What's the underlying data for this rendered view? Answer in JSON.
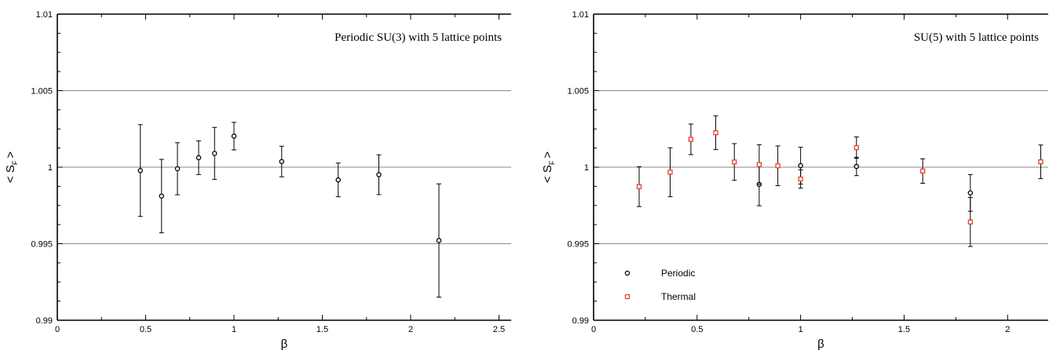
{
  "chart_data": [
    {
      "type": "scatter",
      "title": "Periodic SU(3) with 5 lattice points",
      "xlabel": "β",
      "ylabel": "< S",
      "ylabel_sub": "F",
      "ylabel_suffix": ">",
      "xlim": [
        0,
        2.6
      ],
      "ylim": [
        0.99,
        1.01
      ],
      "xticks": [
        0,
        0.5,
        1,
        1.5,
        2,
        2.5
      ],
      "xtick_labels": [
        "0",
        "0.5",
        "1",
        "1.5",
        "2",
        "2.5"
      ],
      "yticks": [
        0.99,
        0.995,
        1,
        1.005,
        1.01
      ],
      "ytick_labels": [
        "0.99",
        "0.995",
        "1",
        "1.005",
        "1.01"
      ],
      "grid_y": [
        0.995,
        1,
        1.005
      ],
      "grid": true,
      "series": [
        {
          "marker": "circle",
          "color": "#000000",
          "x": [
            0.47,
            0.59,
            0.68,
            0.8,
            0.89,
            1.0,
            1.27,
            1.59,
            1.82,
            2.16
          ],
          "y": [
            0.99978,
            0.99811,
            0.9999,
            1.00062,
            1.0009,
            1.00203,
            1.00037,
            0.99917,
            0.99951,
            0.99521
          ],
          "err": [
            0.003,
            0.0024,
            0.0017,
            0.0011,
            0.0017,
            0.0009,
            0.001,
            0.0011,
            0.0013,
            0.0037
          ]
        }
      ]
    },
    {
      "type": "scatter",
      "title": "SU(5) with 5 lattice points",
      "xlabel": "β",
      "ylabel": "< S",
      "ylabel_sub": "F",
      "ylabel_suffix": ">",
      "xlim": [
        0,
        2.2
      ],
      "ylim": [
        0.99,
        1.01
      ],
      "xticks": [
        0,
        0.5,
        1,
        1.5,
        2
      ],
      "xtick_labels": [
        "0",
        "0.5",
        "1",
        "1.5",
        "2"
      ],
      "yticks": [
        0.99,
        0.995,
        1,
        1.005,
        1.01
      ],
      "ytick_labels": [
        "0.99",
        "0.995",
        "1",
        "1.005",
        "1.01"
      ],
      "grid_y": [
        0.995,
        1,
        1.005
      ],
      "grid": true,
      "legend": "bottom-left",
      "series": [
        {
          "name": "Periodic",
          "marker": "circle",
          "color": "#000000",
          "x": [
            0.8,
            1.0,
            1.27,
            1.82
          ],
          "y": [
            0.99888,
            1.0001,
            1.00005,
            0.99832
          ],
          "err": [
            0.0014,
            0.0012,
            0.0006,
            0.0012
          ]
        },
        {
          "name": "Thermal",
          "marker": "square",
          "color": "#e8412a",
          "x": [
            0.22,
            0.37,
            0.47,
            0.59,
            0.68,
            0.8,
            0.89,
            1.0,
            1.27,
            1.59,
            1.82,
            2.16
          ],
          "y": [
            0.99873,
            0.99967,
            1.00182,
            1.00225,
            1.00034,
            1.00017,
            1.00009,
            0.99923,
            1.00128,
            0.99975,
            0.99642,
            1.00035
          ],
          "err": [
            0.0013,
            0.0016,
            0.001,
            0.0011,
            0.0012,
            0.0013,
            0.0013,
            0.0006,
            0.0007,
            0.0008,
            0.0016,
            0.0011
          ]
        }
      ]
    }
  ]
}
